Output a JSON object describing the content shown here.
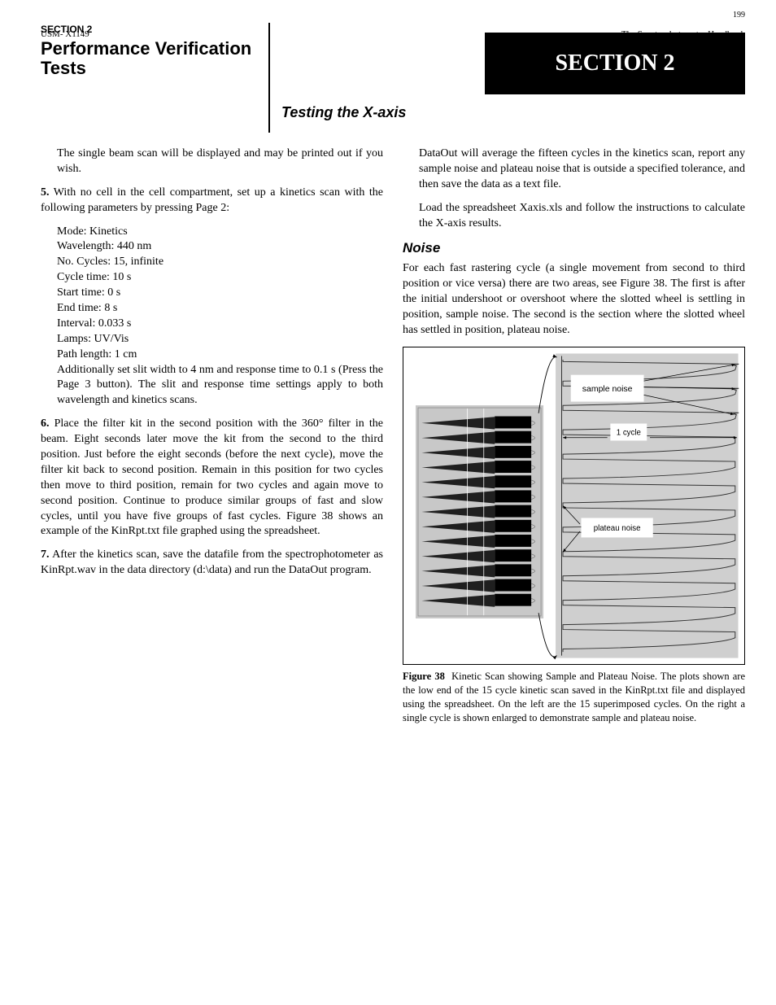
{
  "header": {
    "top_right": "199",
    "box_label": "SECTION 2",
    "section_eyebrow": "SECTION 2",
    "section_title": "Performance Verification Tests",
    "section_subhead": "Testing the X-axis"
  },
  "para": {
    "p1": "The single beam scan will be displayed and may be printed out if you wish.",
    "step5_label": "5.",
    "p2": "With no cell in the cell compartment, set up a kinetics scan with the following parameters by pressing Page 2:",
    "kin_params": [
      "Mode: Kinetics",
      "Wavelength: 440 nm",
      "No. Cycles: 15, infinite",
      "Cycle time: 10 s",
      "Start time: 0 s",
      "End time: 8 s",
      "Interval: 0.033 s",
      "Lamps: UV/Vis",
      "Path length: 1 cm"
    ],
    "p3": "Additionally set slit width to 4 nm and response time to 0.1 s (Press the Page 3 button). The slit and response time settings apply to both wavelength and kinetics scans.",
    "step6_label": "6.",
    "p4": "Place the filter kit in the second position with the 360° filter in the beam. Eight seconds later move the kit from the second to the third position. Just before the eight seconds (before the next cycle), move the filter kit back to second position. Remain in this position for two cycles then move to third position, remain for two cycles and again move to second position. Continue to produce similar groups of fast and slow cycles, until you have five groups of fast cycles. Figure 38 shows an example of the KinRpt.txt file graphed using the spreadsheet.",
    "step7_label": "7.",
    "p5": "After the kinetics scan, save the datafile from the spectrophotometer as KinRpt.wav in the data directory (d:\\data) and run the DataOut program."
  },
  "right": {
    "p1": "DataOut will average the fifteen cycles in the kinetics scan, report any sample noise and plateau noise that is outside a specified tolerance, and then save the data as a text file.",
    "p1b": "Load the spreadsheet Xaxis.xls and follow the instructions to calculate the X-axis results.",
    "subhead": "Noise",
    "p2": "For each fast rastering cycle (a single movement from second to third position or vice versa) there are two areas, see Figure 38. The first is after the initial undershoot or overshoot where the slotted wheel is settling in position, sample noise. The second is the section where the slotted wheel has settled in position, plateau noise."
  },
  "figure": {
    "left_panel": {
      "bg": "#c8c8c8",
      "rows": 13,
      "fin_fill": "#1f1f1f"
    },
    "right_panel": {
      "bg": "#cfcfcf",
      "n_peaks": 12
    },
    "labels": {
      "sample_noise": "sample noise",
      "cycle": "1 cycle",
      "plateau_noise": "plateau noise"
    },
    "caption_label": "Figure 38",
    "caption": "Kinetic Scan showing Sample and Plateau Noise. The plots shown are the low end of the 15 cycle kinetic scan saved in the KinRpt.txt file and displayed using the spreadsheet. On the left are the 15 superimposed cycles. On the right a single cycle is shown enlarged to demonstrate sample and plateau noise."
  },
  "footer": {
    "left": "USM- X1149",
    "right": "The Spectrophotometer Handbook"
  }
}
